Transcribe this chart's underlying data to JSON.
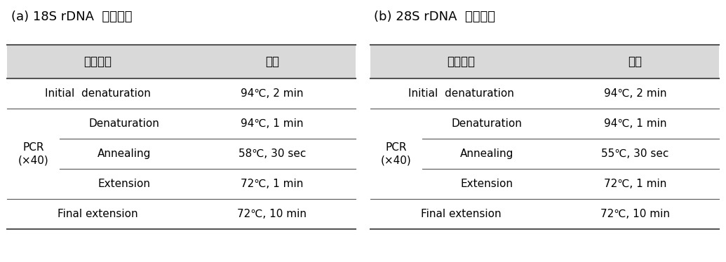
{
  "title_a": "(a) 18S rDNA  반응조건",
  "title_b": "(b) 28S rDNA  반응조건",
  "header_col1": "반응단계",
  "header_col2": "조건",
  "header_bg": "#d9d9d9",
  "table_bg": "#ffffff",
  "border_color": "#555555",
  "text_color": "#000000",
  "font_size_title": 13,
  "font_size_header": 12,
  "font_size_body": 11,
  "table_a": {
    "rows": [
      {
        "col1": "Initial  denaturation",
        "col2": "94℃, 2 min",
        "span": 1,
        "group": null
      },
      {
        "col1": "Denaturation",
        "col2": "94℃, 1 min",
        "span": 1,
        "group": "PCR\n(×40)"
      },
      {
        "col1": "Annealing",
        "col2": "58℃, 30 sec",
        "span": 1,
        "group": "PCR\n(×40)"
      },
      {
        "col1": "Extension",
        "col2": "72℃, 1 min",
        "span": 1,
        "group": "PCR\n(×40)"
      },
      {
        "col1": "Final extension",
        "col2": "72℃, 10 min",
        "span": 1,
        "group": null
      }
    ]
  },
  "table_b": {
    "rows": [
      {
        "col1": "Initial  denaturation",
        "col2": "94℃, 2 min",
        "span": 1,
        "group": null
      },
      {
        "col1": "Denaturation",
        "col2": "94℃, 1 min",
        "span": 1,
        "group": "PCR\n(×40)"
      },
      {
        "col1": "Annealing",
        "col2": "55℃, 30 sec",
        "span": 1,
        "group": "PCR\n(×40)"
      },
      {
        "col1": "Extension",
        "col2": "72℃, 1 min",
        "span": 1,
        "group": "PCR\n(×40)"
      },
      {
        "col1": "Final extension",
        "col2": "72℃, 10 min",
        "span": 1,
        "group": null
      }
    ]
  }
}
